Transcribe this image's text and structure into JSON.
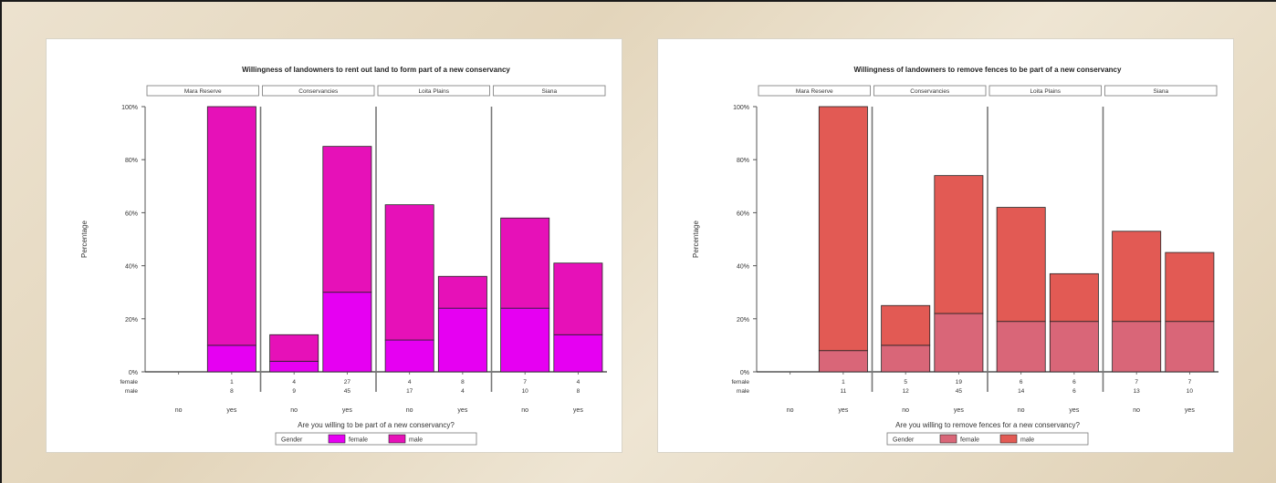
{
  "chart_data": [
    {
      "type": "bar",
      "stacked": true,
      "title": "Willingness of landowners to rent out land to form part of a new conservancy",
      "xlabel": "Are you willing to be part of a new conservancy?",
      "ylabel": "Percentage",
      "ylim": [
        0,
        100
      ],
      "yticks": [
        "0%",
        "20%",
        "40%",
        "60%",
        "80%",
        "100%"
      ],
      "groups": [
        "Mara Reserve",
        "Conservancies",
        "Loita Plains",
        "Siana"
      ],
      "categories": [
        "no",
        "yes"
      ],
      "legend": {
        "title": "Gender",
        "entries": [
          "female",
          "male"
        ]
      },
      "colors": {
        "female": "#e600f2",
        "male": "#e611b8"
      },
      "count_rows": [
        "female",
        "male"
      ],
      "series": [
        {
          "name": "female",
          "values": [
            [
              0,
              10
            ],
            [
              4,
              30
            ],
            [
              12,
              24
            ],
            [
              24,
              14
            ]
          ],
          "counts": [
            [
              "",
              "1"
            ],
            [
              "4",
              "27"
            ],
            [
              "4",
              "8"
            ],
            [
              "7",
              "4"
            ]
          ]
        },
        {
          "name": "male",
          "values": [
            [
              0,
              90
            ],
            [
              10,
              55
            ],
            [
              51,
              12
            ],
            [
              34,
              27
            ]
          ],
          "counts": [
            [
              "",
              "8"
            ],
            [
              "9",
              "45"
            ],
            [
              "17",
              "4"
            ],
            [
              "10",
              "8"
            ]
          ]
        }
      ]
    },
    {
      "type": "bar",
      "stacked": true,
      "title": "Willingness of landowners to remove fences to be part of a new conservancy",
      "xlabel": "Are you willing to remove fences for a new conservancy?",
      "ylabel": "Percentage",
      "ylim": [
        0,
        100
      ],
      "yticks": [
        "0%",
        "20%",
        "40%",
        "60%",
        "80%",
        "100%"
      ],
      "groups": [
        "Mara Reserve",
        "Conservancies",
        "Loita Plains",
        "Siana"
      ],
      "categories": [
        "no",
        "yes"
      ],
      "legend": {
        "title": "Gender",
        "entries": [
          "female",
          "male"
        ]
      },
      "colors": {
        "female": "#d96678",
        "male": "#e25a54"
      },
      "count_rows": [
        "female",
        "male"
      ],
      "series": [
        {
          "name": "female",
          "values": [
            [
              0,
              8
            ],
            [
              10,
              22
            ],
            [
              19,
              19
            ],
            [
              19,
              19
            ]
          ],
          "counts": [
            [
              "",
              "1"
            ],
            [
              "5",
              "19"
            ],
            [
              "6",
              "6"
            ],
            [
              "7",
              "7"
            ]
          ]
        },
        {
          "name": "male",
          "values": [
            [
              0,
              92
            ],
            [
              15,
              52
            ],
            [
              43,
              18
            ],
            [
              34,
              26
            ]
          ],
          "counts": [
            [
              "",
              "11"
            ],
            [
              "12",
              "45"
            ],
            [
              "14",
              "6"
            ],
            [
              "13",
              "10"
            ]
          ]
        }
      ]
    }
  ]
}
